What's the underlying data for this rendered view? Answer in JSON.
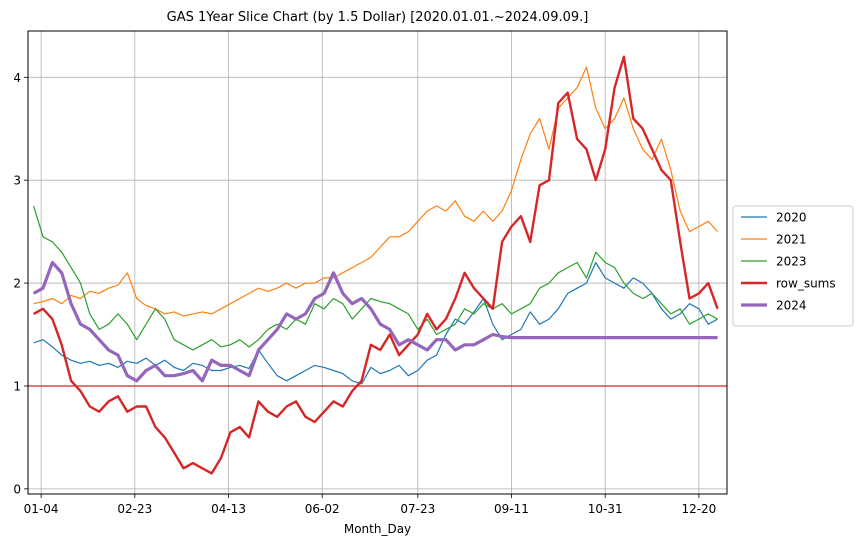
{
  "chart_data": {
    "type": "line",
    "title": "GAS 1Year Slice Chart (by 1.5 Dollar) [2020.01.01.~2024.09.09.]",
    "xlabel": "Month_Day",
    "ylabel": "",
    "x_tick_labels": [
      "01-04",
      "02-23",
      "04-13",
      "06-02",
      "07-23",
      "09-11",
      "10-31",
      "12-20"
    ],
    "x_tick_days": [
      4,
      54,
      104,
      154,
      205,
      255,
      305,
      355
    ],
    "x_range": [
      -3,
      370
    ],
    "y_ticks": [
      0,
      1,
      2,
      3,
      4
    ],
    "y_range": [
      -0.05,
      4.45
    ],
    "grid": true,
    "legend_position": "right",
    "reference_line": {
      "y": 1.0,
      "color": "#d62728"
    },
    "series": [
      {
        "name": "2020",
        "color": "#1f77b4",
        "stroke_width": 1.2,
        "x": [
          0,
          5,
          10,
          15,
          20,
          25,
          30,
          35,
          40,
          45,
          50,
          55,
          60,
          65,
          70,
          75,
          80,
          85,
          90,
          95,
          100,
          105,
          110,
          115,
          120,
          125,
          130,
          135,
          140,
          145,
          150,
          155,
          160,
          165,
          170,
          175,
          180,
          185,
          190,
          195,
          200,
          205,
          210,
          215,
          220,
          225,
          230,
          235,
          240,
          245,
          250,
          255,
          260,
          265,
          270,
          275,
          280,
          285,
          290,
          295,
          300,
          305,
          310,
          315,
          320,
          325,
          330,
          335,
          340,
          345,
          350,
          355,
          360,
          365
        ],
        "values": [
          1.42,
          1.45,
          1.38,
          1.3,
          1.25,
          1.22,
          1.24,
          1.2,
          1.22,
          1.18,
          1.24,
          1.22,
          1.27,
          1.2,
          1.25,
          1.18,
          1.15,
          1.22,
          1.2,
          1.15,
          1.15,
          1.18,
          1.2,
          1.17,
          1.35,
          1.22,
          1.1,
          1.05,
          1.1,
          1.15,
          1.2,
          1.18,
          1.15,
          1.12,
          1.05,
          1.02,
          1.18,
          1.12,
          1.15,
          1.2,
          1.1,
          1.15,
          1.25,
          1.3,
          1.5,
          1.65,
          1.6,
          1.72,
          1.85,
          1.6,
          1.45,
          1.5,
          1.55,
          1.72,
          1.6,
          1.65,
          1.75,
          1.9,
          1.95,
          2.0,
          2.2,
          2.05,
          2.0,
          1.95,
          2.05,
          2.0,
          1.9,
          1.75,
          1.65,
          1.7,
          1.8,
          1.75,
          1.6,
          1.65
        ]
      },
      {
        "name": "2021",
        "color": "#ff7f0e",
        "stroke_width": 1.2,
        "x": [
          0,
          5,
          10,
          15,
          20,
          25,
          30,
          35,
          40,
          45,
          50,
          55,
          60,
          65,
          70,
          75,
          80,
          85,
          90,
          95,
          100,
          105,
          110,
          115,
          120,
          125,
          130,
          135,
          140,
          145,
          150,
          155,
          160,
          165,
          170,
          175,
          180,
          185,
          190,
          195,
          200,
          205,
          210,
          215,
          220,
          225,
          230,
          235,
          240,
          245,
          250,
          255,
          260,
          265,
          270,
          275,
          280,
          285,
          290,
          295,
          300,
          305,
          310,
          315,
          320,
          325,
          330,
          335,
          340,
          345,
          350,
          355,
          360,
          365
        ],
        "values": [
          1.8,
          1.82,
          1.85,
          1.8,
          1.88,
          1.85,
          1.92,
          1.9,
          1.95,
          1.98,
          2.1,
          1.85,
          1.78,
          1.75,
          1.7,
          1.72,
          1.68,
          1.7,
          1.72,
          1.7,
          1.75,
          1.8,
          1.85,
          1.9,
          1.95,
          1.92,
          1.95,
          2.0,
          1.95,
          2.0,
          2.0,
          2.05,
          2.05,
          2.1,
          2.15,
          2.2,
          2.25,
          2.35,
          2.45,
          2.45,
          2.5,
          2.6,
          2.7,
          2.75,
          2.7,
          2.8,
          2.65,
          2.6,
          2.7,
          2.6,
          2.7,
          2.9,
          3.2,
          3.45,
          3.6,
          3.3,
          3.7,
          3.8,
          3.9,
          4.1,
          3.7,
          3.5,
          3.6,
          3.8,
          3.5,
          3.3,
          3.2,
          3.4,
          3.1,
          2.7,
          2.5,
          2.55,
          2.6,
          2.5
        ]
      },
      {
        "name": "2023",
        "color": "#2ca02c",
        "stroke_width": 1.2,
        "x": [
          0,
          5,
          10,
          15,
          20,
          25,
          30,
          35,
          40,
          45,
          50,
          55,
          60,
          65,
          70,
          75,
          80,
          85,
          90,
          95,
          100,
          105,
          110,
          115,
          120,
          125,
          130,
          135,
          140,
          145,
          150,
          155,
          160,
          165,
          170,
          175,
          180,
          185,
          190,
          195,
          200,
          205,
          210,
          215,
          220,
          225,
          230,
          235,
          240,
          245,
          250,
          255,
          260,
          265,
          270,
          275,
          280,
          285,
          290,
          295,
          300,
          305,
          310,
          315,
          320,
          325,
          330,
          335,
          340,
          345,
          350,
          355,
          360,
          365
        ],
        "values": [
          2.75,
          2.45,
          2.4,
          2.3,
          2.15,
          2.0,
          1.7,
          1.55,
          1.6,
          1.7,
          1.6,
          1.45,
          1.6,
          1.75,
          1.65,
          1.45,
          1.4,
          1.35,
          1.4,
          1.45,
          1.38,
          1.4,
          1.45,
          1.38,
          1.45,
          1.55,
          1.6,
          1.55,
          1.65,
          1.6,
          1.8,
          1.75,
          1.85,
          1.8,
          1.65,
          1.75,
          1.85,
          1.82,
          1.8,
          1.75,
          1.7,
          1.55,
          1.65,
          1.5,
          1.55,
          1.6,
          1.75,
          1.7,
          1.8,
          1.75,
          1.8,
          1.7,
          1.75,
          1.8,
          1.95,
          2.0,
          2.1,
          2.15,
          2.2,
          2.05,
          2.3,
          2.2,
          2.15,
          2.0,
          1.9,
          1.85,
          1.9,
          1.8,
          1.7,
          1.75,
          1.6,
          1.65,
          1.7,
          1.65
        ]
      },
      {
        "name": "row_sums",
        "color": "#d62728",
        "stroke_width": 2.4,
        "x": [
          0,
          5,
          10,
          15,
          20,
          25,
          30,
          35,
          40,
          45,
          50,
          55,
          60,
          65,
          70,
          75,
          80,
          85,
          90,
          95,
          100,
          105,
          110,
          115,
          120,
          125,
          130,
          135,
          140,
          145,
          150,
          155,
          160,
          165,
          170,
          175,
          180,
          185,
          190,
          195,
          200,
          205,
          210,
          215,
          220,
          225,
          230,
          235,
          240,
          245,
          250,
          255,
          260,
          265,
          270,
          275,
          280,
          285,
          290,
          295,
          300,
          305,
          310,
          315,
          320,
          325,
          330,
          335,
          340,
          345,
          350,
          355,
          360,
          365
        ],
        "values": [
          1.7,
          1.75,
          1.65,
          1.4,
          1.05,
          0.95,
          0.8,
          0.75,
          0.85,
          0.9,
          0.75,
          0.8,
          0.8,
          0.6,
          0.5,
          0.35,
          0.2,
          0.25,
          0.2,
          0.15,
          0.3,
          0.55,
          0.6,
          0.5,
          0.85,
          0.75,
          0.7,
          0.8,
          0.85,
          0.7,
          0.65,
          0.75,
          0.85,
          0.8,
          0.95,
          1.05,
          1.4,
          1.35,
          1.5,
          1.3,
          1.4,
          1.5,
          1.7,
          1.55,
          1.65,
          1.85,
          2.1,
          1.95,
          1.85,
          1.75,
          2.4,
          2.55,
          2.65,
          2.4,
          2.95,
          3.0,
          3.75,
          3.85,
          3.4,
          3.3,
          3.0,
          3.3,
          3.9,
          4.2,
          3.6,
          3.5,
          3.3,
          3.1,
          3.0,
          2.4,
          1.85,
          1.9,
          2.0,
          1.75
        ]
      },
      {
        "name": "2024",
        "color": "#9467bd",
        "stroke_width": 3.2,
        "x": [
          0,
          5,
          10,
          15,
          20,
          25,
          30,
          35,
          40,
          45,
          50,
          55,
          60,
          65,
          70,
          75,
          80,
          85,
          90,
          95,
          100,
          105,
          110,
          115,
          120,
          125,
          130,
          135,
          140,
          145,
          150,
          155,
          160,
          165,
          170,
          175,
          180,
          185,
          190,
          195,
          200,
          205,
          210,
          215,
          220,
          225,
          230,
          235,
          240,
          245,
          250,
          255,
          260,
          265,
          365
        ],
        "values": [
          1.9,
          1.95,
          2.2,
          2.1,
          1.8,
          1.6,
          1.55,
          1.45,
          1.35,
          1.3,
          1.1,
          1.05,
          1.15,
          1.2,
          1.1,
          1.1,
          1.12,
          1.15,
          1.05,
          1.25,
          1.2,
          1.2,
          1.15,
          1.1,
          1.35,
          1.45,
          1.55,
          1.7,
          1.65,
          1.7,
          1.85,
          1.9,
          2.1,
          1.9,
          1.8,
          1.85,
          1.75,
          1.6,
          1.55,
          1.4,
          1.45,
          1.4,
          1.35,
          1.45,
          1.45,
          1.35,
          1.4,
          1.4,
          1.45,
          1.5,
          1.48,
          1.47,
          1.47,
          1.47,
          1.47
        ]
      }
    ]
  }
}
